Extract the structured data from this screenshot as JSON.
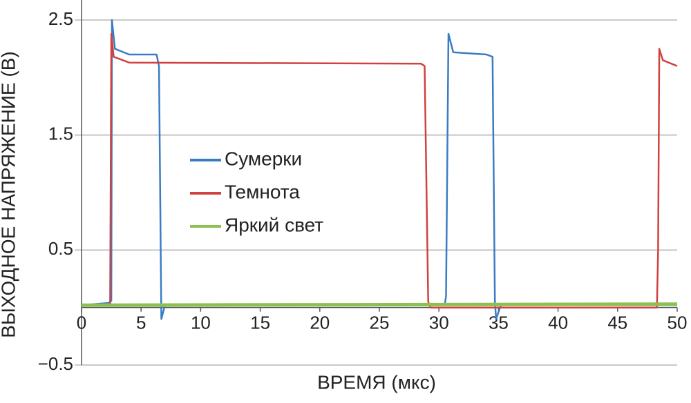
{
  "chart_data": {
    "type": "line",
    "xlabel": "ВРЕМЯ (мкс)",
    "ylabel": "ВЫХОДНОЕ НАПРЯЖЕНИЕ (В)",
    "xlim": [
      0,
      50
    ],
    "ylim": [
      -0.5,
      2.5
    ],
    "xticks": [
      0,
      5,
      10,
      15,
      20,
      25,
      30,
      35,
      40,
      45,
      50
    ],
    "yticks": [
      2.5,
      1.5,
      0.5,
      {
        "value": -0.5,
        "label": "−0.5"
      }
    ],
    "grid": true,
    "legend": "center",
    "series": [
      {
        "name": "Сумерки",
        "color": "#3a7cc4",
        "x": [
          0,
          2.3,
          2.5,
          2.55,
          2.8,
          4,
          6.3,
          6.5,
          6.7,
          7,
          30.5,
          30.6,
          30.8,
          31.2,
          34,
          34.5,
          34.7,
          34.8,
          35.2,
          50
        ],
        "values": [
          0.02,
          0.04,
          0.06,
          2.5,
          2.25,
          2.2,
          2.2,
          2.1,
          -0.1,
          0.02,
          0.03,
          0.1,
          2.38,
          2.22,
          2.2,
          2.18,
          0.05,
          -0.1,
          0.02,
          0.02
        ]
      },
      {
        "name": "Темнота",
        "color": "#d0413f",
        "x": [
          0,
          2.4,
          2.5,
          2.7,
          4,
          28.5,
          28.8,
          29.1,
          29.3,
          48.3,
          48.4,
          48.5,
          48.8,
          50
        ],
        "values": [
          0.02,
          0.02,
          2.38,
          2.18,
          2.13,
          2.12,
          2.1,
          0.05,
          0.0,
          0.0,
          0.5,
          2.25,
          2.15,
          2.1
        ]
      },
      {
        "name": "Яркий свет",
        "color": "#8cc152",
        "x": [
          0,
          50
        ],
        "values": [
          0.02,
          0.03
        ]
      }
    ]
  }
}
